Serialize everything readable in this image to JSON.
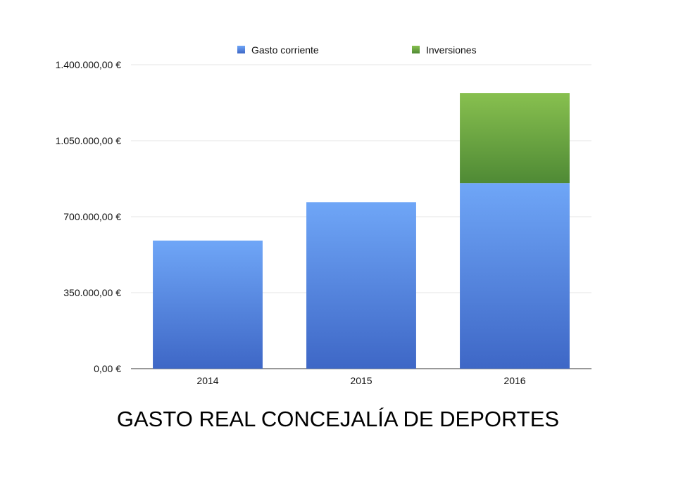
{
  "chart_data": {
    "type": "bar",
    "stacked": true,
    "title": "GASTO REAL CONCEJALÍA DE DEPORTES",
    "xlabel": "",
    "ylabel": "",
    "categories": [
      "2014",
      "2015",
      "2016"
    ],
    "series": [
      {
        "name": "Gasto corriente",
        "values": [
          590000,
          767000,
          855000
        ],
        "color": "#5a8de4"
      },
      {
        "name": "Inversiones",
        "values": [
          0,
          0,
          415000
        ],
        "color": "#6aa84a"
      }
    ],
    "ylim": [
      0,
      1400000
    ],
    "yticks": [
      0,
      350000,
      700000,
      1050000,
      1400000
    ],
    "ytick_labels": [
      "0,00 €",
      "350.000,00 €",
      "700.000,00 €",
      "1.050.000,00 €",
      "1.400.000,00 €"
    ],
    "grid": true,
    "legend_position": "top-center"
  }
}
